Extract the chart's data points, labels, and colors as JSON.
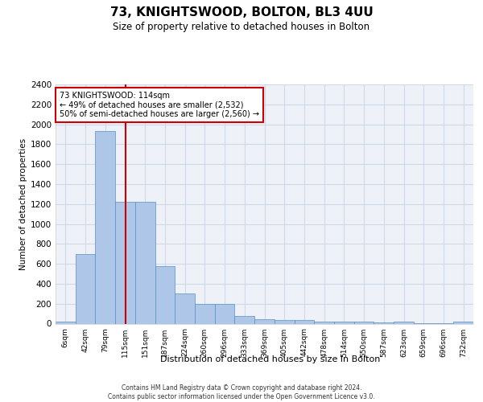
{
  "title": "73, KNIGHTSWOOD, BOLTON, BL3 4UU",
  "subtitle": "Size of property relative to detached houses in Bolton",
  "xlabel": "Distribution of detached houses by size in Bolton",
  "ylabel": "Number of detached properties",
  "categories": [
    "6sqm",
    "42sqm",
    "79sqm",
    "115sqm",
    "151sqm",
    "187sqm",
    "224sqm",
    "260sqm",
    "296sqm",
    "333sqm",
    "369sqm",
    "405sqm",
    "442sqm",
    "478sqm",
    "514sqm",
    "550sqm",
    "587sqm",
    "623sqm",
    "659sqm",
    "696sqm",
    "732sqm"
  ],
  "values": [
    20,
    700,
    1930,
    1220,
    1220,
    575,
    305,
    200,
    200,
    80,
    45,
    38,
    38,
    22,
    22,
    22,
    10,
    22,
    5,
    5,
    22
  ],
  "bar_color": "#aec6e8",
  "bar_edge_color": "#5a8fc0",
  "vline_x_index": 3,
  "vline_color": "#cc0000",
  "annotation_line1": "73 KNIGHTSWOOD: 114sqm",
  "annotation_line2": "← 49% of detached houses are smaller (2,532)",
  "annotation_line3": "50% of semi-detached houses are larger (2,560) →",
  "annotation_box_color": "#cc0000",
  "ylim": [
    0,
    2400
  ],
  "yticks": [
    0,
    200,
    400,
    600,
    800,
    1000,
    1200,
    1400,
    1600,
    1800,
    2000,
    2200,
    2400
  ],
  "footer_line1": "Contains HM Land Registry data © Crown copyright and database right 2024.",
  "footer_line2": "Contains public sector information licensed under the Open Government Licence v3.0.",
  "grid_color": "#d0d8e8",
  "bg_color": "#eef2f8"
}
